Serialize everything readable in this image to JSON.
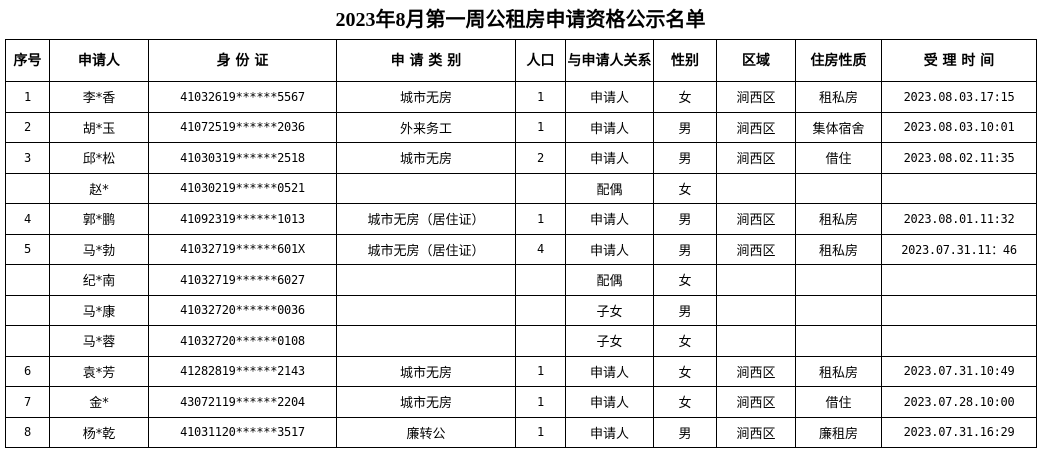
{
  "title": "2023年8月第一周公租房申请资格公示名单",
  "headers": [
    "序号",
    "申请人",
    "身 份 证",
    "申 请 类 别",
    "人口",
    "与申请人关系",
    "性别",
    "区域",
    "住房性质",
    "受 理 时 间"
  ],
  "rows": [
    [
      "1",
      "李*香",
      "41032619******5567",
      "城市无房",
      "1",
      "申请人",
      "女",
      "涧西区",
      "租私房",
      "2023.08.03.17:15"
    ],
    [
      "2",
      "胡*玉",
      "41072519******2036",
      "外来务工",
      "1",
      "申请人",
      "男",
      "涧西区",
      "集体宿舍",
      "2023.08.03.10:01"
    ],
    [
      "3",
      "邱*松",
      "41030319******2518",
      "城市无房",
      "2",
      "申请人",
      "男",
      "涧西区",
      "借住",
      "2023.08.02.11:35"
    ],
    [
      "",
      "赵*",
      "41030219******0521",
      "",
      "",
      "配偶",
      "女",
      "",
      "",
      ""
    ],
    [
      "4",
      "郭*鹏",
      "41092319******1013",
      "城市无房（居住证）",
      "1",
      "申请人",
      "男",
      "涧西区",
      "租私房",
      "2023.08.01.11:32"
    ],
    [
      "5",
      "马*勃",
      "41032719******601X",
      "城市无房（居住证）",
      "4",
      "申请人",
      "男",
      "涧西区",
      "租私房",
      "2023.07.31.11：46"
    ],
    [
      "",
      "纪*南",
      "41032719******6027",
      "",
      "",
      "配偶",
      "女",
      "",
      "",
      ""
    ],
    [
      "",
      "马*康",
      "41032720******0036",
      "",
      "",
      "子女",
      "男",
      "",
      "",
      ""
    ],
    [
      "",
      "马*蓉",
      "41032720******0108",
      "",
      "",
      "子女",
      "女",
      "",
      "",
      ""
    ],
    [
      "6",
      "袁*芳",
      "41282819******2143",
      "城市无房",
      "1",
      "申请人",
      "女",
      "涧西区",
      "租私房",
      "2023.07.31.10:49"
    ],
    [
      "7",
      "金*",
      "43072119******2204",
      "城市无房",
      "1",
      "申请人",
      "女",
      "涧西区",
      "借住",
      "2023.07.28.10:00"
    ],
    [
      "8",
      "杨*乾",
      "41031120******3517",
      "廉转公",
      "1",
      "申请人",
      "男",
      "涧西区",
      "廉租房",
      "2023.07.31.16:29"
    ]
  ]
}
